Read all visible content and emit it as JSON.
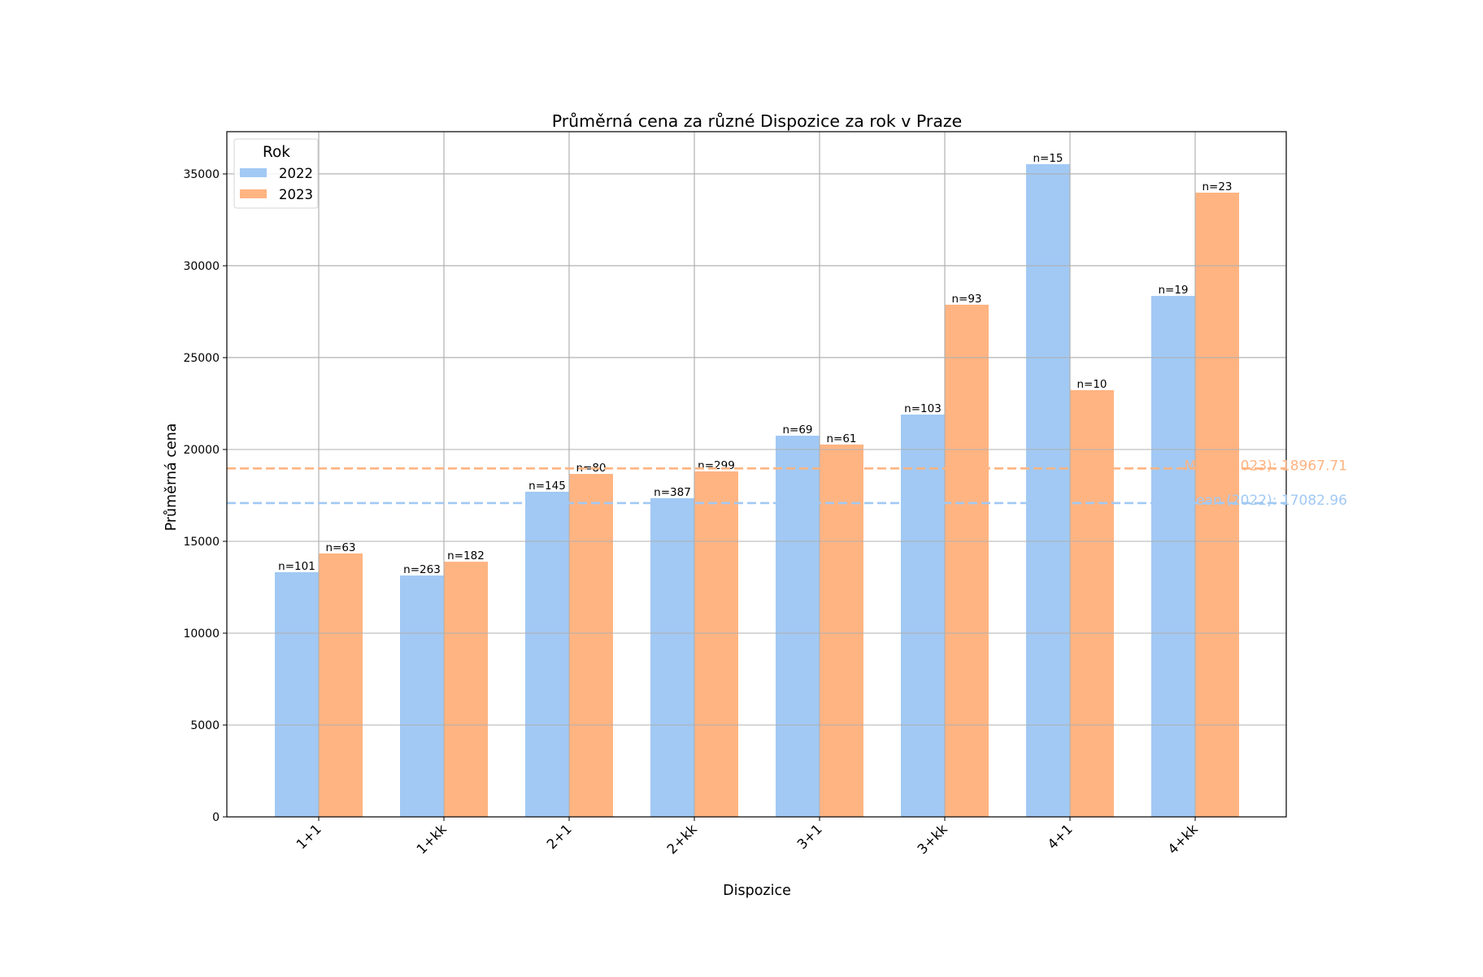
{
  "chart_data": {
    "type": "bar",
    "title": "Průměrná cena za různé Dispozice za rok v Praze",
    "xlabel": "Dispozice",
    "ylabel": "Průměrná cena",
    "categories": [
      "1+1",
      "1+kk",
      "2+1",
      "2+kk",
      "3+1",
      "3+kk",
      "4+1",
      "4+kk"
    ],
    "series": [
      {
        "name": "2022",
        "color": "#a1c9f4",
        "values": [
          13320,
          13140,
          17700,
          17350,
          20750,
          21900,
          35530,
          28360
        ],
        "counts": [
          "n=101",
          "n=263",
          "n=145",
          "n=387",
          "n=69",
          "n=103",
          "n=15",
          "n=19"
        ]
      },
      {
        "name": "2023",
        "color": "#ffb482",
        "values": [
          14340,
          13890,
          18670,
          18810,
          20270,
          27880,
          23230,
          33980
        ],
        "counts": [
          "n=63",
          "n=182",
          "n=80",
          "n=299",
          "n=61",
          "n=93",
          "n=10",
          "n=23"
        ]
      }
    ],
    "mean_lines": [
      {
        "series": "2023",
        "value": 18967.71,
        "label": "Mean (2023): 18967.71",
        "color": "#ffb482"
      },
      {
        "series": "2022",
        "value": 17082.96,
        "label": "Mean (2022): 17082.96",
        "color": "#a1c9f4"
      }
    ],
    "yticks": [
      0,
      5000,
      10000,
      15000,
      20000,
      25000,
      30000,
      35000
    ],
    "ylim": [
      0,
      37300
    ],
    "grid": true,
    "legend": {
      "title": "Rok",
      "position": "upper left",
      "entries": [
        "2022",
        "2023"
      ]
    },
    "xtick_rotation": -45
  }
}
